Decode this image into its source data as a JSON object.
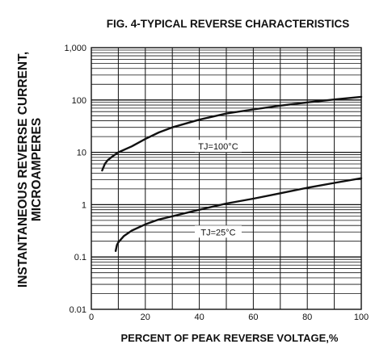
{
  "chart_data": {
    "type": "line",
    "title": "FIG. 4-TYPICAL REVERSE CHARACTERISTICS",
    "xlabel": "PERCENT OF PEAK REVERSE VOLTAGE,%",
    "ylabel_line1": "INSTANTANEOUS REVERSE CURRENT,",
    "ylabel_line2": "MICROAMPERES",
    "xlim": [
      0,
      100
    ],
    "ylim": [
      0.01,
      1000
    ],
    "yscale": "log",
    "grid": true,
    "x_ticks": [
      0,
      20,
      40,
      60,
      80,
      100
    ],
    "x_tick_labels": [
      "0",
      "20",
      "40",
      "60",
      "80",
      "100"
    ],
    "y_ticks": [
      0.01,
      0.1,
      1,
      10,
      100,
      1000
    ],
    "y_tick_labels": [
      "0.01",
      "0.1",
      "1",
      "10",
      "100",
      "1,000"
    ],
    "series": [
      {
        "name": "TJ=100°C",
        "color": "#111111",
        "x": [
          4,
          5,
          6,
          8,
          10,
          15,
          20,
          25,
          30,
          40,
          50,
          60,
          70,
          80,
          90,
          100
        ],
        "y": [
          4.5,
          6.0,
          7.0,
          8.5,
          10,
          13,
          18,
          24,
          30,
          42,
          55,
          66,
          78,
          90,
          102,
          115
        ]
      },
      {
        "name": "TJ=25°C",
        "color": "#111111",
        "x": [
          9,
          9.5,
          10,
          12,
          15,
          20,
          25,
          30,
          40,
          50,
          60,
          70,
          80,
          90,
          100
        ],
        "y": [
          0.13,
          0.17,
          0.19,
          0.25,
          0.32,
          0.42,
          0.52,
          0.6,
          0.8,
          1.05,
          1.3,
          1.65,
          2.1,
          2.6,
          3.2
        ]
      }
    ]
  }
}
